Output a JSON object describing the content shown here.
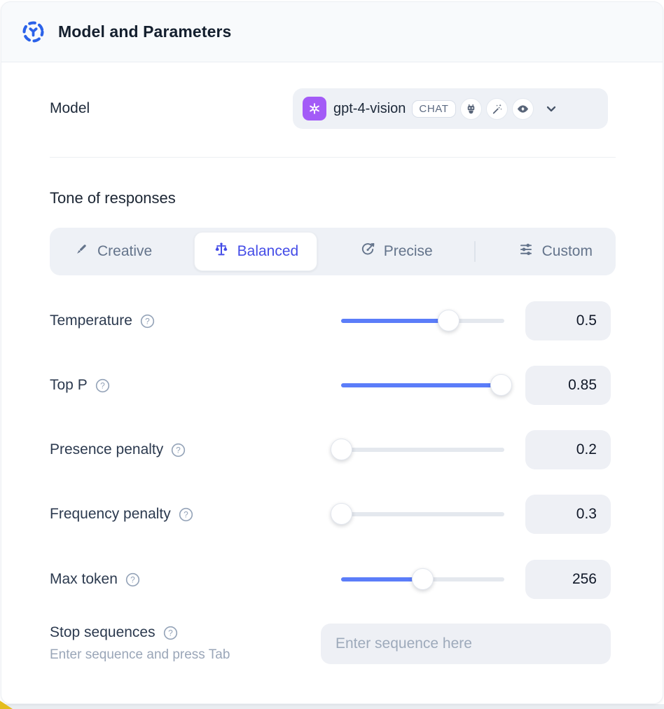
{
  "header": {
    "title": "Model and Parameters",
    "icon": "model-hub-icon",
    "icon_color": "#2b62e9"
  },
  "model": {
    "label": "Model",
    "selected": {
      "name": "gpt-4-vision",
      "provider_icon": "openai-logo",
      "badge": "CHAT",
      "capability_icons": [
        "robot-icon",
        "magic-wand-icon",
        "eye-icon"
      ],
      "dropdown_icon": "chevron-down-icon"
    }
  },
  "tone": {
    "heading": "Tone of responses",
    "selected_color": "#444ce7",
    "options": [
      {
        "label": "Creative",
        "icon": "paintbrush-icon",
        "selected": false
      },
      {
        "label": "Balanced",
        "icon": "balance-scale-icon",
        "selected": true
      },
      {
        "label": "Precise",
        "icon": "target-icon",
        "selected": false
      },
      {
        "label": "Custom",
        "icon": "sliders-icon",
        "selected": false
      }
    ]
  },
  "parameters": [
    {
      "label": "Temperature",
      "value": "0.5",
      "fill_pct": 66,
      "help_icon": "question-circle-icon"
    },
    {
      "label": "Top P",
      "value": "0.85",
      "fill_pct": 98,
      "help_icon": "question-circle-icon"
    },
    {
      "label": "Presence penalty",
      "value": "0.2",
      "fill_pct": 0,
      "help_icon": "question-circle-icon"
    },
    {
      "label": "Frequency penalty",
      "value": "0.3",
      "fill_pct": 0,
      "help_icon": "question-circle-icon"
    },
    {
      "label": "Max token",
      "value": "256",
      "fill_pct": 50,
      "help_icon": "question-circle-icon"
    }
  ],
  "stop_sequences": {
    "label": "Stop sequences",
    "hint": "Enter sequence and press Tab",
    "placeholder": "Enter sequence here",
    "value": "",
    "help_icon": "question-circle-icon"
  },
  "colors": {
    "slider_blue": "#5b7df9",
    "selected_indigo": "#444ce7",
    "brand_purple": "#a35bf7",
    "header_bg": "#f8fafc",
    "control_bg": "#eef1f6"
  }
}
